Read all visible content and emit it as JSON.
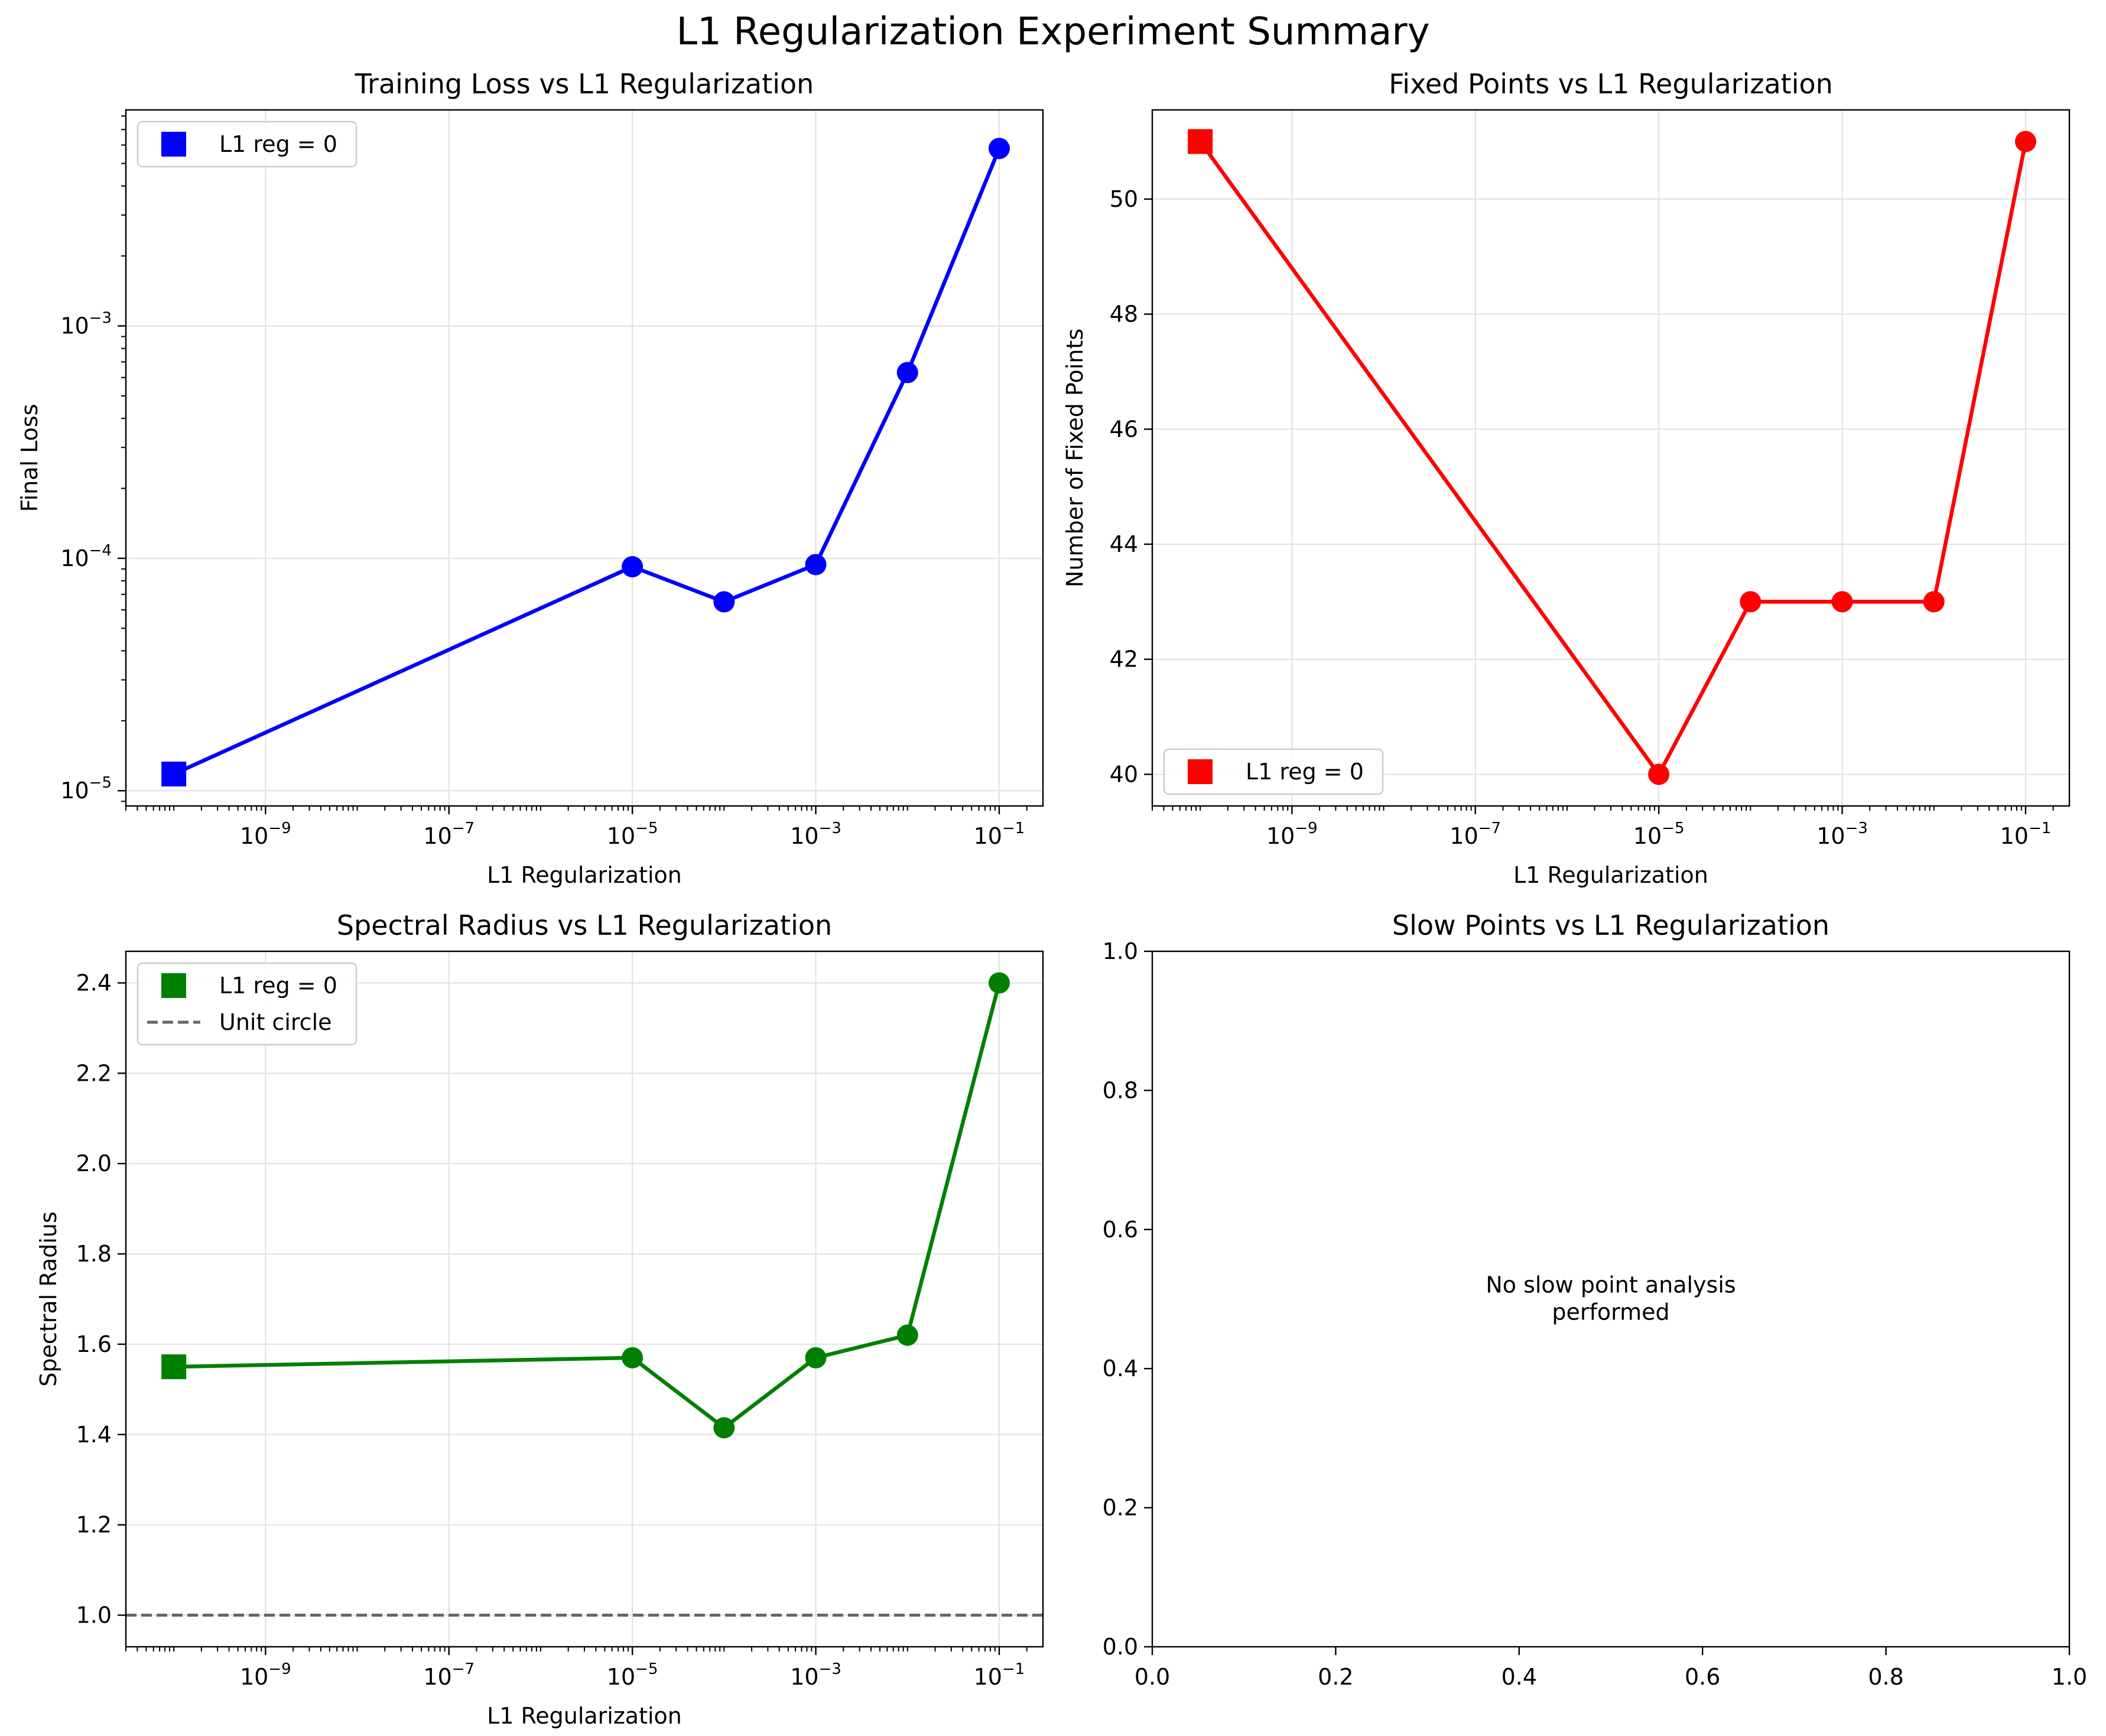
{
  "figure": {
    "title": "L1 Regularization Experiment Summary"
  },
  "chart_data": [
    {
      "type": "line",
      "title": "Training Loss vs L1 Regularization",
      "xlabel": "L1 Regularization",
      "ylabel": "Final Loss",
      "xscale": "log",
      "yscale": "log",
      "xlim": [
        3e-11,
        0.3
      ],
      "ylim": [
        8.6e-06,
        0.0085
      ],
      "xticks": [
        {
          "value": 1e-09,
          "base": "10",
          "exp": "−9"
        },
        {
          "value": 1e-07,
          "base": "10",
          "exp": "−7"
        },
        {
          "value": 1e-05,
          "base": "10",
          "exp": "−5"
        },
        {
          "value": 0.001,
          "base": "10",
          "exp": "−3"
        },
        {
          "value": 0.1,
          "base": "10",
          "exp": "−1"
        }
      ],
      "yticks": [
        {
          "value": 1e-05,
          "base": "10",
          "exp": "−5"
        },
        {
          "value": 0.0001,
          "base": "10",
          "exp": "−4"
        },
        {
          "value": 0.001,
          "base": "10",
          "exp": "−3"
        }
      ],
      "grid": true,
      "color": "#0000ff",
      "baseline_point": {
        "x": 1e-10,
        "y": 1.18e-05
      },
      "series": [
        {
          "x": [
            1e-05,
            0.0001,
            0.001,
            0.01,
            0.1
          ],
          "y": [
            9.2e-05,
            6.5e-05,
            9.4e-05,
            0.00063,
            0.0058
          ]
        }
      ],
      "legend": {
        "position": "upper left",
        "entries": [
          {
            "label": "L1 reg = 0",
            "marker": "square",
            "color": "#0000ff"
          }
        ]
      }
    },
    {
      "type": "line",
      "title": "Fixed Points vs L1 Regularization",
      "xlabel": "L1 Regularization",
      "ylabel": "Number of Fixed Points",
      "xscale": "log",
      "xlim": [
        3e-11,
        0.3
      ],
      "ylim": [
        39.45,
        51.55
      ],
      "xticks": [
        {
          "value": 1e-09,
          "base": "10",
          "exp": "−9"
        },
        {
          "value": 1e-07,
          "base": "10",
          "exp": "−7"
        },
        {
          "value": 1e-05,
          "base": "10",
          "exp": "−5"
        },
        {
          "value": 0.001,
          "base": "10",
          "exp": "−3"
        },
        {
          "value": 0.1,
          "base": "10",
          "exp": "−1"
        }
      ],
      "yticks": [
        {
          "value": 40,
          "label": "40"
        },
        {
          "value": 42,
          "label": "42"
        },
        {
          "value": 44,
          "label": "44"
        },
        {
          "value": 46,
          "label": "46"
        },
        {
          "value": 48,
          "label": "48"
        },
        {
          "value": 50,
          "label": "50"
        }
      ],
      "grid": true,
      "color": "#ff0000",
      "baseline_point": {
        "x": 1e-10,
        "y": 51
      },
      "series": [
        {
          "x": [
            1e-05,
            0.0001,
            0.001,
            0.01,
            0.1
          ],
          "y": [
            40,
            43,
            43,
            43,
            51
          ]
        }
      ],
      "legend": {
        "position": "lower left",
        "entries": [
          {
            "label": "L1 reg = 0",
            "marker": "square",
            "color": "#ff0000"
          }
        ]
      }
    },
    {
      "type": "line",
      "title": "Spectral Radius vs L1 Regularization",
      "xlabel": "L1 Regularization",
      "ylabel": "Spectral Radius",
      "xscale": "log",
      "xlim": [
        3e-11,
        0.3
      ],
      "ylim": [
        0.93,
        2.47
      ],
      "xticks": [
        {
          "value": 1e-09,
          "base": "10",
          "exp": "−9"
        },
        {
          "value": 1e-07,
          "base": "10",
          "exp": "−7"
        },
        {
          "value": 1e-05,
          "base": "10",
          "exp": "−5"
        },
        {
          "value": 0.001,
          "base": "10",
          "exp": "−3"
        },
        {
          "value": 0.1,
          "base": "10",
          "exp": "−1"
        }
      ],
      "yticks": [
        {
          "value": 1.0,
          "label": "1.0"
        },
        {
          "value": 1.2,
          "label": "1.2"
        },
        {
          "value": 1.4,
          "label": "1.4"
        },
        {
          "value": 1.6,
          "label": "1.6"
        },
        {
          "value": 1.8,
          "label": "1.8"
        },
        {
          "value": 2.0,
          "label": "2.0"
        },
        {
          "value": 2.2,
          "label": "2.2"
        },
        {
          "value": 2.4,
          "label": "2.4"
        }
      ],
      "grid": true,
      "color": "#008000",
      "baseline_point": {
        "x": 1e-10,
        "y": 1.55
      },
      "series": [
        {
          "x": [
            1e-05,
            0.0001,
            0.001,
            0.01,
            0.1
          ],
          "y": [
            1.57,
            1.415,
            1.57,
            1.62,
            2.4
          ]
        }
      ],
      "hline": {
        "y": 1.0,
        "color": "#666666",
        "style": "dashed",
        "label": "Unit circle"
      },
      "legend": {
        "position": "upper left",
        "entries": [
          {
            "label": "L1 reg = 0",
            "marker": "square",
            "color": "#008000"
          },
          {
            "label": "Unit circle",
            "marker": "dashed-line",
            "color": "#666666"
          }
        ]
      }
    },
    {
      "type": "line",
      "title": "Slow Points vs L1 Regularization",
      "xlim": [
        0,
        1
      ],
      "ylim": [
        0,
        1
      ],
      "xticks": [
        {
          "value": 0.0,
          "label": "0.0"
        },
        {
          "value": 0.2,
          "label": "0.2"
        },
        {
          "value": 0.4,
          "label": "0.4"
        },
        {
          "value": 0.6,
          "label": "0.6"
        },
        {
          "value": 0.8,
          "label": "0.8"
        },
        {
          "value": 1.0,
          "label": "1.0"
        }
      ],
      "yticks": [
        {
          "value": 0.0,
          "label": "0.0"
        },
        {
          "value": 0.2,
          "label": "0.2"
        },
        {
          "value": 0.4,
          "label": "0.4"
        },
        {
          "value": 0.6,
          "label": "0.6"
        },
        {
          "value": 0.8,
          "label": "0.8"
        },
        {
          "value": 1.0,
          "label": "1.0"
        }
      ],
      "grid": false,
      "series": [],
      "annotation": {
        "lines": [
          "No slow point analysis",
          "performed"
        ],
        "x": 0.5,
        "y": 0.5
      }
    }
  ]
}
